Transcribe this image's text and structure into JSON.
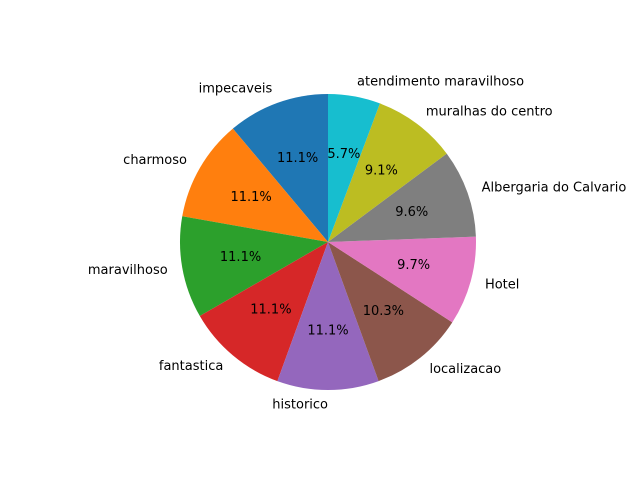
{
  "chart_data": {
    "type": "pie",
    "title": "",
    "start_angle_deg": 90,
    "direction": "counterclockwise",
    "slices": [
      {
        "label": "impecaveis",
        "value": 11.1,
        "pct_label": "11.1%",
        "color": "#1f77b4"
      },
      {
        "label": "charmoso",
        "value": 11.1,
        "pct_label": "11.1%",
        "color": "#ff7f0e"
      },
      {
        "label": "maravilhoso",
        "value": 11.1,
        "pct_label": "11.1%",
        "color": "#2ca02c"
      },
      {
        "label": "fantastica",
        "value": 11.1,
        "pct_label": "11.1%",
        "color": "#d62728"
      },
      {
        "label": "historico",
        "value": 11.1,
        "pct_label": "11.1%",
        "color": "#9467bd"
      },
      {
        "label": "localizacao",
        "value": 10.3,
        "pct_label": "10.3%",
        "color": "#8c564b"
      },
      {
        "label": "Hotel",
        "value": 9.7,
        "pct_label": "9.7%",
        "color": "#e377c2"
      },
      {
        "label": "Albergaria do Calvario",
        "value": 9.6,
        "pct_label": "9.6%",
        "color": "#7f7f7f"
      },
      {
        "label": "muralhas do centro",
        "value": 9.1,
        "pct_label": "9.1%",
        "color": "#bcbd22"
      },
      {
        "label": "atendimento maravilhoso",
        "value": 5.7,
        "pct_label": "5.7%",
        "color": "#17becf"
      }
    ]
  }
}
